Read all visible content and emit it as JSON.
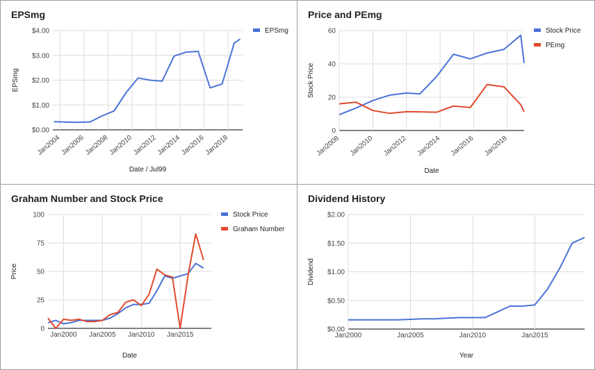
{
  "chart_data": [
    {
      "type": "line",
      "title": "EPSmg",
      "xlabel": "Date / Jul99",
      "ylabel": "EPSmg",
      "x_ticks": [
        "Jan2004",
        "Jan2006",
        "Jan2008",
        "Jan2010",
        "Jan2012",
        "Jan2014",
        "Jan2016",
        "Jan2018"
      ],
      "y_ticks": [
        "$0.00",
        "$1.00",
        "$2.00",
        "$3.00",
        "$4.00"
      ],
      "ylim": [
        0,
        4
      ],
      "xlim": [
        2003.4,
        2019.2
      ],
      "legend": "top-right",
      "series": [
        {
          "name": "EPSmg",
          "color": "#4a72d6",
          "x": [
            2003.5,
            2004.5,
            2005.5,
            2006.5,
            2007.5,
            2008.5,
            2009.5,
            2010.5,
            2011.5,
            2012.5,
            2013.5,
            2014.5,
            2015.5,
            2016.5,
            2017.5,
            2018.5,
            2019.0
          ],
          "values": [
            0.33,
            0.31,
            0.3,
            0.32,
            0.56,
            0.76,
            1.5,
            2.09,
            2.0,
            1.96,
            2.97,
            3.13,
            3.16,
            1.69,
            1.85,
            3.49,
            3.66
          ]
        }
      ]
    },
    {
      "type": "line",
      "title": "Price and PEmg",
      "xlabel": "Date",
      "ylabel": "Stock Price",
      "x_ticks": [
        "Jan2008",
        "Jan2010",
        "Jan2012",
        "Jan2014",
        "Jan2016",
        "Jan2018"
      ],
      "y_ticks": [
        "0",
        "20",
        "40",
        "60"
      ],
      "ylim": [
        0,
        60
      ],
      "xlim": [
        2008.0,
        2019.0
      ],
      "legend": "top-right",
      "series": [
        {
          "name": "Stock Price",
          "color": "#4a72d6",
          "x": [
            2008.0,
            2009.0,
            2010.0,
            2011.0,
            2012.0,
            2012.8,
            2013.8,
            2014.8,
            2015.8,
            2016.8,
            2017.8,
            2018.8,
            2019.0
          ],
          "values": [
            9.5,
            13.5,
            18.0,
            21.2,
            22.5,
            22.0,
            32.5,
            45.8,
            43.0,
            46.5,
            48.7,
            57.2,
            40.5
          ]
        },
        {
          "name": "PEmg",
          "color": "#e0492d",
          "x": [
            2008.0,
            2009.0,
            2010.0,
            2011.0,
            2012.0,
            2012.8,
            2013.8,
            2014.8,
            2015.8,
            2016.8,
            2017.8,
            2018.8,
            2019.0
          ],
          "values": [
            16.0,
            17.0,
            12.0,
            10.3,
            11.3,
            11.2,
            11.0,
            14.7,
            13.8,
            27.6,
            26.2,
            15.5,
            11.3
          ]
        }
      ]
    },
    {
      "type": "line",
      "title": "Graham Number and Stock Price",
      "xlabel": "Date",
      "ylabel": "Price",
      "x_ticks": [
        "Jan2000",
        "Jan2005",
        "Jan2010",
        "Jan2015"
      ],
      "y_ticks": [
        "0",
        "25",
        "50",
        "75",
        "100"
      ],
      "ylim": [
        0,
        100
      ],
      "xlim": [
        1998.0,
        2019.0
      ],
      "legend": "top-right",
      "series": [
        {
          "name": "Stock Price",
          "color": "#4a72d6",
          "x": [
            1998.0,
            1999.0,
            2000.0,
            2001.0,
            2002.0,
            2003.0,
            2004.0,
            2005.0,
            2006.0,
            2007.0,
            2008.0,
            2009.0,
            2010.0,
            2011.0,
            2012.0,
            2013.0,
            2014.0,
            2015.0,
            2016.0,
            2017.0,
            2018.0
          ],
          "values": [
            5,
            7,
            4,
            5,
            7,
            7,
            7,
            7,
            9,
            13,
            18,
            21,
            21,
            22,
            33,
            46,
            44,
            46,
            48,
            57,
            53
          ]
        },
        {
          "name": "Graham Number",
          "color": "#e0492d",
          "x": [
            1998.0,
            1999.0,
            2000.0,
            2001.0,
            2002.0,
            2003.0,
            2004.0,
            2005.0,
            2006.0,
            2007.0,
            2008.0,
            2009.0,
            2010.0,
            2011.0,
            2012.0,
            2013.0,
            2014.0,
            2015.0,
            2016.0,
            2017.0,
            2018.0
          ],
          "values": [
            9,
            0,
            8,
            7,
            8,
            6,
            6,
            7,
            12,
            14,
            23,
            25,
            20,
            30,
            52,
            47,
            45,
            0,
            46,
            83,
            60
          ]
        }
      ]
    },
    {
      "type": "line",
      "title": "Dividend History",
      "xlabel": "Year",
      "ylabel": "Dividend",
      "x_ticks": [
        "Jan2000",
        "Jan2005",
        "Jan2010",
        "Jan2015"
      ],
      "y_ticks": [
        "$0.00",
        "$0.50",
        "$1.00",
        "$1.50",
        "$2.00"
      ],
      "ylim": [
        0,
        2
      ],
      "xlim": [
        2000.0,
        2019.0
      ],
      "legend": "none",
      "series": [
        {
          "name": "Dividend",
          "color": "#4a72d6",
          "x": [
            2000,
            2001,
            2002,
            2003,
            2004,
            2005,
            2006,
            2007,
            2008,
            2009,
            2010,
            2011,
            2012,
            2013,
            2014,
            2015,
            2016,
            2017,
            2018,
            2019
          ],
          "values": [
            0.16,
            0.16,
            0.16,
            0.16,
            0.16,
            0.17,
            0.18,
            0.18,
            0.19,
            0.2,
            0.2,
            0.2,
            0.3,
            0.4,
            0.4,
            0.42,
            0.69,
            1.06,
            1.5,
            1.6
          ]
        }
      ]
    }
  ]
}
